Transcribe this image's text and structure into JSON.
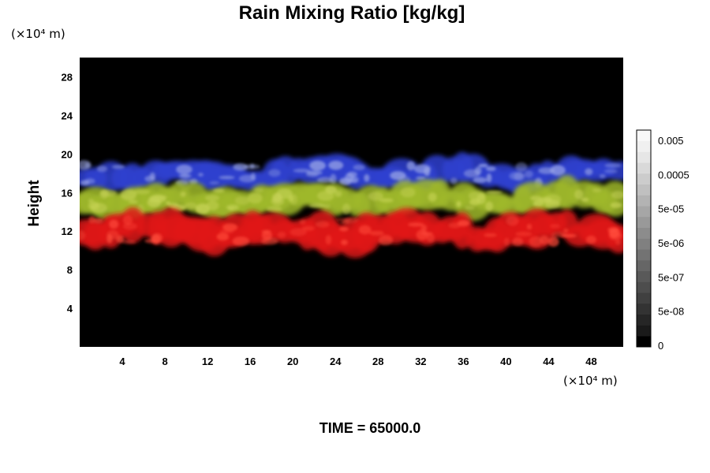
{
  "chart_data": {
    "type": "heatmap",
    "title": "Rain Mixing Ratio [kg/kg]",
    "xlabel": "",
    "ylabel": "Height",
    "x_unit": "(×10⁴ m)",
    "y_unit": "(×10⁴ m)",
    "xlim": [
      0,
      51
    ],
    "ylim": [
      0,
      30
    ],
    "x_ticks": [
      4,
      8,
      12,
      16,
      20,
      24,
      28,
      32,
      36,
      40,
      44,
      48
    ],
    "y_ticks": [
      4,
      8,
      12,
      16,
      20,
      24,
      28
    ],
    "grid": false,
    "background_color": "#000000",
    "bands": [
      {
        "name": "blue",
        "color": "#2f3fd0",
        "highlight": "#9aa6e6",
        "y_range": [
          16.3,
          19.5
        ]
      },
      {
        "name": "yellow-green",
        "color": "#9fb82a",
        "highlight": "#c8d458",
        "y_range": [
          13.5,
          17
        ]
      },
      {
        "name": "red",
        "color": "#e01818",
        "highlight": "#ff4a3a",
        "y_range": [
          10,
          14
        ]
      }
    ],
    "colorbar": {
      "tick_labels": [
        "0.005",
        "0.0005",
        "5e-05",
        "5e-06",
        "5e-07",
        "5e-08",
        "0"
      ],
      "colors": [
        "#000000",
        "#1a1a1a",
        "#262626",
        "#333333",
        "#404040",
        "#4d4d4d",
        "#595959",
        "#666666",
        "#737373",
        "#808080",
        "#8c8c8c",
        "#999999",
        "#a6a6a6",
        "#b3b3b3",
        "#c0c0c0",
        "#cccccc",
        "#d9d9d9",
        "#e6e6e6",
        "#f0f0f0",
        "#f8f8f8"
      ]
    },
    "annotation": "TIME = 65000.0"
  }
}
